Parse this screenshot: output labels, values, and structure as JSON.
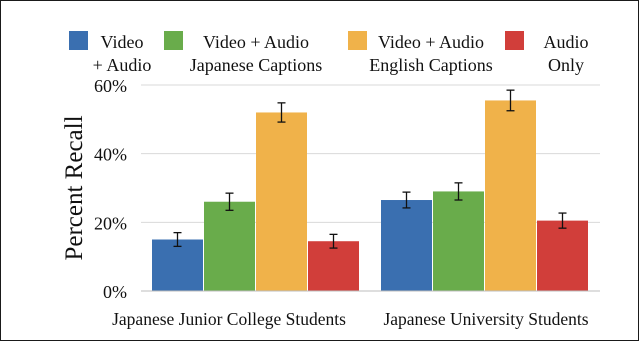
{
  "chart_data": {
    "type": "bar",
    "title": "",
    "xlabel": "",
    "ylabel": "Percent Recall",
    "ylim": [
      0,
      60
    ],
    "yticks": [
      0,
      20,
      40,
      60
    ],
    "ytick_labels": [
      "0%",
      "20%",
      "40%",
      "60%"
    ],
    "grid": true,
    "legend_position": "top",
    "categories": [
      "Japanese Junior College Students",
      "Japanese University Students"
    ],
    "series": [
      {
        "name": "Video + Audio",
        "legend_lines": [
          "Video",
          "+ Audio"
        ],
        "color": "#3a6fb0",
        "values": [
          15,
          26.5
        ],
        "errors": [
          2,
          2.3
        ]
      },
      {
        "name": "Video + Audio Japanese Captions",
        "legend_lines": [
          "Video + Audio",
          "Japanese Captions"
        ],
        "color": "#69ac4b",
        "values": [
          26,
          29
        ],
        "errors": [
          2.5,
          2.5
        ]
      },
      {
        "name": "Video + Audio English Captions",
        "legend_lines": [
          "Video + Audio",
          "English Captions"
        ],
        "color": "#f0b24a",
        "values": [
          52,
          55.5
        ],
        "errors": [
          2.8,
          3
        ]
      },
      {
        "name": "Audio Only",
        "legend_lines": [
          "Audio",
          "Only"
        ],
        "color": "#d13e3a",
        "values": [
          14.5,
          20.5
        ],
        "errors": [
          2,
          2.2
        ]
      }
    ]
  }
}
